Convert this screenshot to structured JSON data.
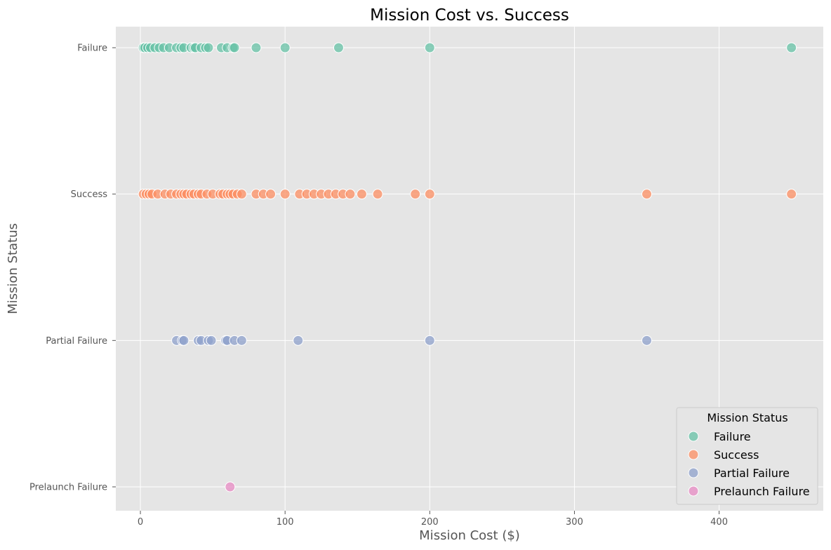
{
  "chart_data": {
    "type": "scatter",
    "title": "Mission Cost vs. Success",
    "xlabel": "Mission Cost ($)",
    "ylabel": "Mission Status",
    "xlim": [
      -17,
      472
    ],
    "x_ticks": [
      0,
      100,
      200,
      300,
      400
    ],
    "categories": [
      "Failure",
      "Success",
      "Partial Failure",
      "Prelaunch Failure"
    ],
    "grid": true,
    "legend": {
      "title": "Mission Status",
      "position": "bottom-right"
    },
    "series": [
      {
        "name": "Failure",
        "color": "#66c2a5",
        "y": "Failure",
        "x": [
          2,
          3,
          5,
          7,
          10,
          13,
          16,
          20,
          25,
          28,
          30,
          35,
          37,
          38,
          42,
          45,
          47,
          56,
          60,
          64,
          65,
          80,
          100,
          137,
          200,
          450
        ]
      },
      {
        "name": "Success",
        "color": "#fc8d62",
        "y": "Success",
        "x": [
          2,
          4,
          6,
          8,
          12,
          17,
          21,
          25,
          28,
          30,
          32,
          35,
          37,
          40,
          42,
          46,
          50,
          55,
          57,
          60,
          62,
          64,
          67,
          70,
          80,
          85,
          90,
          100,
          110,
          115,
          120,
          125,
          130,
          135,
          140,
          145,
          153,
          164,
          190,
          200,
          350,
          450
        ]
      },
      {
        "name": "Partial Failure",
        "color": "#8da0cb",
        "y": "Partial Failure",
        "x": [
          25,
          29,
          30,
          40,
          42,
          47,
          49,
          59,
          60,
          65,
          70,
          109,
          200,
          350
        ]
      },
      {
        "name": "Prelaunch Failure",
        "color": "#e78ac3",
        "y": "Prelaunch Failure",
        "x": [
          62
        ]
      }
    ]
  }
}
